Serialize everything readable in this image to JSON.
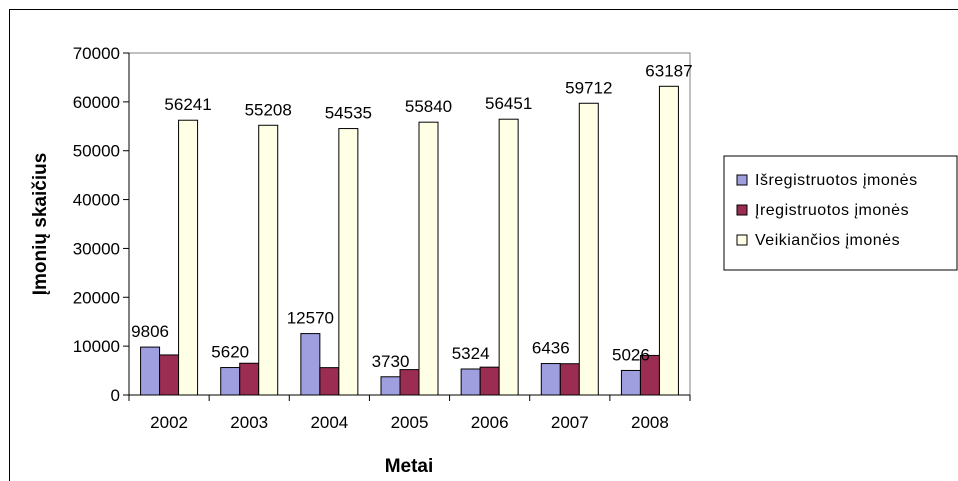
{
  "chart_data": {
    "type": "bar",
    "title": "",
    "xlabel": "Metai",
    "ylabel": "Įmonių skaičius",
    "ylim": [
      0,
      70000
    ],
    "yticks": [
      0,
      10000,
      20000,
      30000,
      40000,
      50000,
      60000,
      70000
    ],
    "categories": [
      "2002",
      "2003",
      "2004",
      "2005",
      "2006",
      "2007",
      "2008"
    ],
    "series": [
      {
        "name": "Išregistruotos įmonės",
        "color": "#9f9fdf",
        "values": [
          9806,
          5620,
          12570,
          3730,
          5324,
          6436,
          5026
        ],
        "labels": [
          "9806",
          "5620",
          "12570",
          "3730",
          "5324",
          "6436",
          "5026"
        ]
      },
      {
        "name": "Įregistruotos įmonės",
        "color": "#9b2d52",
        "values": [
          8200,
          6500,
          5600,
          5200,
          5700,
          6400,
          8100
        ],
        "labels": []
      },
      {
        "name": "Veikiančios įmonės",
        "color": "#ffffe6",
        "values": [
          56241,
          55208,
          54535,
          55840,
          56451,
          59712,
          63187
        ],
        "labels": [
          "56241",
          "55208",
          "54535",
          "55840",
          "56451",
          "59712",
          "63187"
        ]
      }
    ],
    "grid": false,
    "legend_position": "right"
  }
}
